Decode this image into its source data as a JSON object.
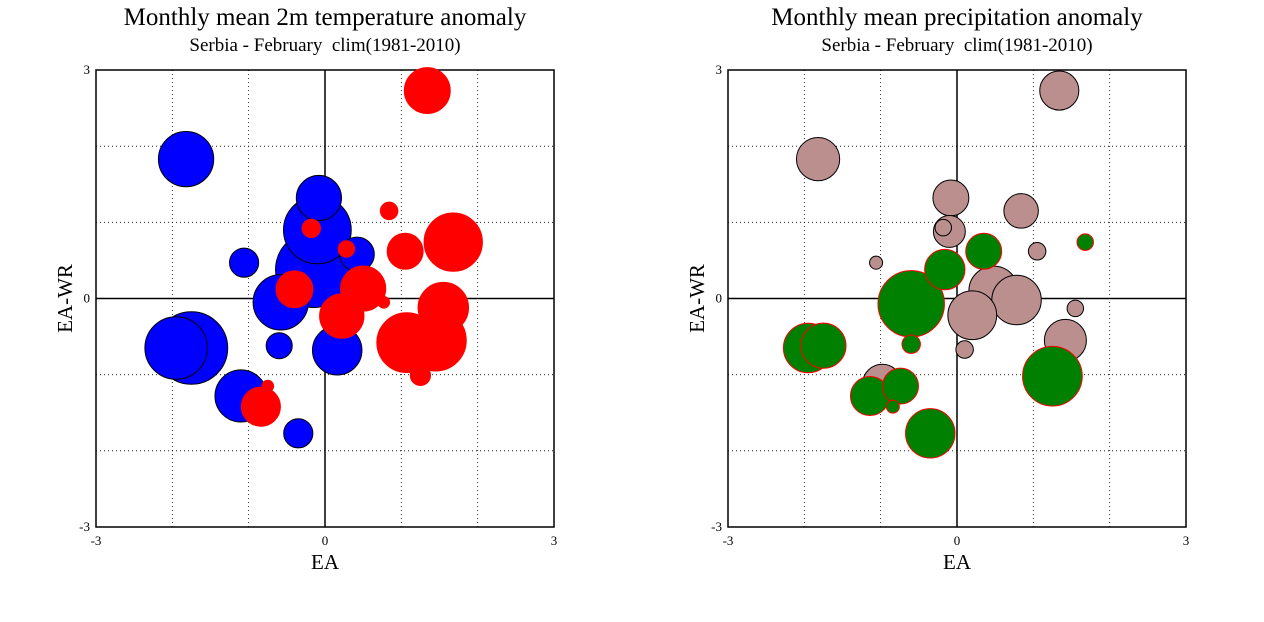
{
  "chart_data": [
    {
      "type": "scatter",
      "title": "Monthly mean 2m temperature anomaly",
      "subtitle": "Serbia - February  clim(1981-2010)",
      "xlabel": "EA",
      "ylabel": "EA-WR",
      "xlim": [
        -3,
        3
      ],
      "ylim": [
        -3,
        3
      ],
      "xticks": [
        "-3",
        "0",
        "3"
      ],
      "yticks": [
        "3",
        "0",
        "-3"
      ],
      "grid": true,
      "grid_style": "dotted",
      "colors": {
        "positive": "#ff0000",
        "negative": "#0000ff",
        "edge": "#000000"
      },
      "series": [
        {
          "points": [
            {
              "x": -1.82,
              "y": 1.83,
              "size": 0.9
            },
            {
              "x": -0.08,
              "y": 1.32,
              "size": 0.6
            },
            {
              "x": -0.1,
              "y": 0.9,
              "size": 1.35
            },
            {
              "x": -1.06,
              "y": 0.47,
              "size": 0.25
            },
            {
              "x": 0.42,
              "y": 0.58,
              "size": 0.35
            },
            {
              "x": -0.15,
              "y": 0.38,
              "size": 1.7
            },
            {
              "x": -0.58,
              "y": -0.05,
              "size": 0.9
            },
            {
              "x": -1.95,
              "y": -0.65,
              "size": 1.15
            },
            {
              "x": -1.75,
              "y": -0.65,
              "size": 1.55
            },
            {
              "x": -0.6,
              "y": -0.62,
              "size": 0.2
            },
            {
              "x": 0.16,
              "y": -0.68,
              "size": 0.72
            },
            {
              "x": -1.1,
              "y": -1.28,
              "size": 0.8
            },
            {
              "x": -0.35,
              "y": -1.77,
              "size": 0.25
            }
          ]
        },
        {
          "points": [
            {
              "x": 1.34,
              "y": 2.73,
              "size": 0.62
            },
            {
              "x": 0.84,
              "y": 1.15,
              "size": 0.09
            },
            {
              "x": -0.18,
              "y": 0.92,
              "size": 0.1
            },
            {
              "x": 1.68,
              "y": 0.74,
              "size": 1.0
            },
            {
              "x": 0.28,
              "y": 0.65,
              "size": 0.08
            },
            {
              "x": 1.05,
              "y": 0.62,
              "size": 0.38
            },
            {
              "x": -0.4,
              "y": 0.12,
              "size": 0.4
            },
            {
              "x": 0.5,
              "y": 0.13,
              "size": 0.6
            },
            {
              "x": 0.77,
              "y": -0.05,
              "size": 0.04
            },
            {
              "x": 1.55,
              "y": -0.12,
              "size": 0.75
            },
            {
              "x": 0.22,
              "y": -0.23,
              "size": 0.58
            },
            {
              "x": 1.07,
              "y": -0.58,
              "size": 1.05
            },
            {
              "x": 1.45,
              "y": -0.55,
              "size": 1.1
            },
            {
              "x": 1.25,
              "y": -1.01,
              "size": 0.12
            },
            {
              "x": -0.75,
              "y": -1.15,
              "size": 0.04
            },
            {
              "x": -0.84,
              "y": -1.42,
              "size": 0.45
            }
          ]
        }
      ]
    },
    {
      "type": "scatter",
      "title": "Monthly mean precipitation anomaly",
      "subtitle": "Serbia - February  clim(1981-2010)",
      "xlabel": "EA",
      "ylabel": "EA-WR",
      "xlim": [
        -3,
        3
      ],
      "ylim": [
        -3,
        3
      ],
      "xticks": [
        "-3",
        "0",
        "3"
      ],
      "yticks": [
        "3",
        "0",
        "-3"
      ],
      "grid": true,
      "grid_style": "dotted",
      "colors": {
        "positive": "#bc8f8f",
        "positive_edge": "#000000",
        "negative": "#008000",
        "negative_edge": "#ff0000"
      },
      "series": [
        {
          "points": [
            {
              "x": 1.34,
              "y": 2.73,
              "size": 0.45
            },
            {
              "x": -1.82,
              "y": 1.83,
              "size": 0.55
            },
            {
              "x": -0.08,
              "y": 1.32,
              "size": 0.38
            },
            {
              "x": 0.84,
              "y": 1.15,
              "size": 0.35
            },
            {
              "x": -0.18,
              "y": 0.93,
              "size": 0.08
            },
            {
              "x": -0.1,
              "y": 0.88,
              "size": 0.3
            },
            {
              "x": 1.05,
              "y": 0.62,
              "size": 0.09
            },
            {
              "x": -1.06,
              "y": 0.47,
              "size": 0.05
            },
            {
              "x": 0.48,
              "y": 0.1,
              "size": 0.72
            },
            {
              "x": 0.78,
              "y": -0.02,
              "size": 0.72
            },
            {
              "x": 1.55,
              "y": -0.13,
              "size": 0.08
            },
            {
              "x": 0.2,
              "y": -0.22,
              "size": 0.7
            },
            {
              "x": 1.42,
              "y": -0.55,
              "size": 0.52
            },
            {
              "x": 0.1,
              "y": -0.67,
              "size": 0.09
            },
            {
              "x": -0.98,
              "y": -1.12,
              "size": 0.45
            }
          ]
        },
        {
          "points": [
            {
              "x": 1.68,
              "y": 0.74,
              "size": 0.08
            },
            {
              "x": 0.35,
              "y": 0.62,
              "size": 0.38
            },
            {
              "x": -0.16,
              "y": 0.38,
              "size": 0.48
            },
            {
              "x": -0.6,
              "y": -0.07,
              "size": 1.3
            },
            {
              "x": -0.6,
              "y": -0.6,
              "size": 0.1
            },
            {
              "x": -1.95,
              "y": -0.65,
              "size": 0.72
            },
            {
              "x": -1.75,
              "y": -0.62,
              "size": 0.6
            },
            {
              "x": 1.25,
              "y": -1.02,
              "size": 1.05
            },
            {
              "x": -0.74,
              "y": -1.15,
              "size": 0.38
            },
            {
              "x": -1.14,
              "y": -1.28,
              "size": 0.45
            },
            {
              "x": -0.84,
              "y": -1.42,
              "size": 0.05
            },
            {
              "x": -0.35,
              "y": -1.77,
              "size": 0.72
            }
          ]
        }
      ]
    }
  ]
}
